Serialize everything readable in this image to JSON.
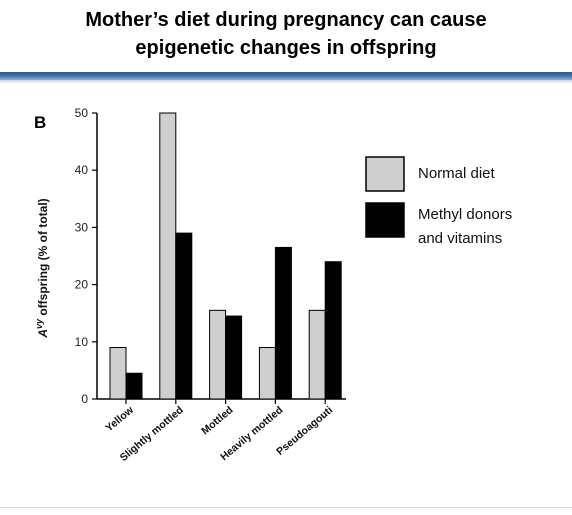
{
  "slide": {
    "title_line1": "Mother’s diet during pregnancy can cause",
    "title_line2": "epigenetic changes in offspring"
  },
  "colors": {
    "accent_rule": "#3f6fa8",
    "normal_diet": "#cfcfcf",
    "methyl_donors": "#000000"
  },
  "chart_data": {
    "type": "bar",
    "panel_label": "B",
    "title": "",
    "xlabel": "",
    "ylabel_prefix": "A",
    "ylabel_superscript": "vy",
    "ylabel_rest": " offspring (% of total)",
    "ylim": [
      0,
      50
    ],
    "yticks": [
      "0",
      "10",
      "20",
      "30",
      "40",
      "50"
    ],
    "categories": [
      "Yellow",
      "Slightly mottled",
      "Mottled",
      "Heavily mottled",
      "Pseudoagouti"
    ],
    "series": [
      {
        "name": "Normal diet",
        "values": [
          9,
          50,
          15.5,
          9,
          15.5
        ],
        "color": "#cfcfcf"
      },
      {
        "name": "Methyl donors and vitamins",
        "name_line1": "Methyl donors",
        "name_line2": "and vitamins",
        "values": [
          4.5,
          29,
          14.5,
          26.5,
          24
        ],
        "color": "#000000"
      }
    ],
    "legend_position": "right",
    "grid": false
  }
}
